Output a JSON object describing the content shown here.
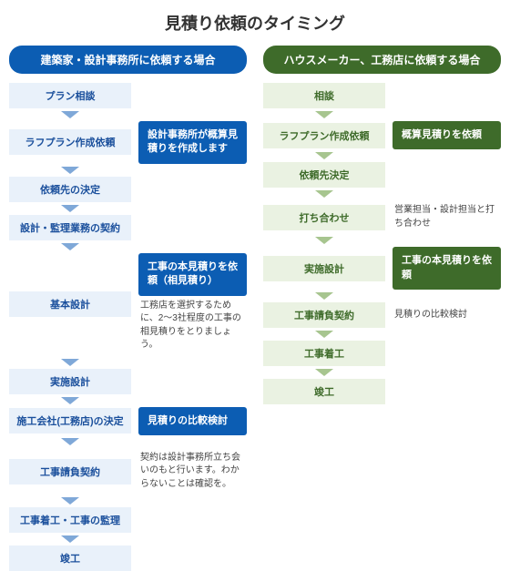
{
  "title": "見積り依頼のタイミング",
  "left": {
    "header": "建築家・設計事務所に依頼する場合",
    "items": [
      {
        "step": "プラン相談"
      },
      {
        "step": "ラフプラン作成依頼",
        "callout": "設計事務所が概算見積りを作成します"
      },
      {
        "step": "依頼先の決定"
      },
      {
        "step": "設計・監理業務の契約"
      },
      {
        "step": "基本設計",
        "callout": "工事の本見積りを依頼（相見積り）",
        "note_below_callout": "工務店を選択するために、2〜3社程度の工事の相見積りをとりましょう。"
      },
      {
        "step": "実施設計"
      },
      {
        "step": "施工会社(工務店)の決定",
        "callout": "見積りの比較検討"
      },
      {
        "step": "工事請負契約",
        "note": "契約は設計事務所立ち会いのもと行います。わからないことは確認を。"
      },
      {
        "step": "工事着工・工事の監理"
      },
      {
        "step": "竣工"
      }
    ]
  },
  "right": {
    "header": "ハウスメーカー、工務店に依頼する場合",
    "items": [
      {
        "step": "相談"
      },
      {
        "step": "ラフプラン作成依頼",
        "callout": "概算見積りを依頼"
      },
      {
        "step": "依頼先決定"
      },
      {
        "step": "打ち合わせ",
        "note": "営業担当・設計担当と打ち合わせ"
      },
      {
        "step": "実施設計",
        "callout": "工事の本見積りを依頼"
      },
      {
        "step": "工事請負契約",
        "note": "見積りの比較検討"
      },
      {
        "step": "工事着工"
      },
      {
        "step": "竣工"
      }
    ]
  }
}
